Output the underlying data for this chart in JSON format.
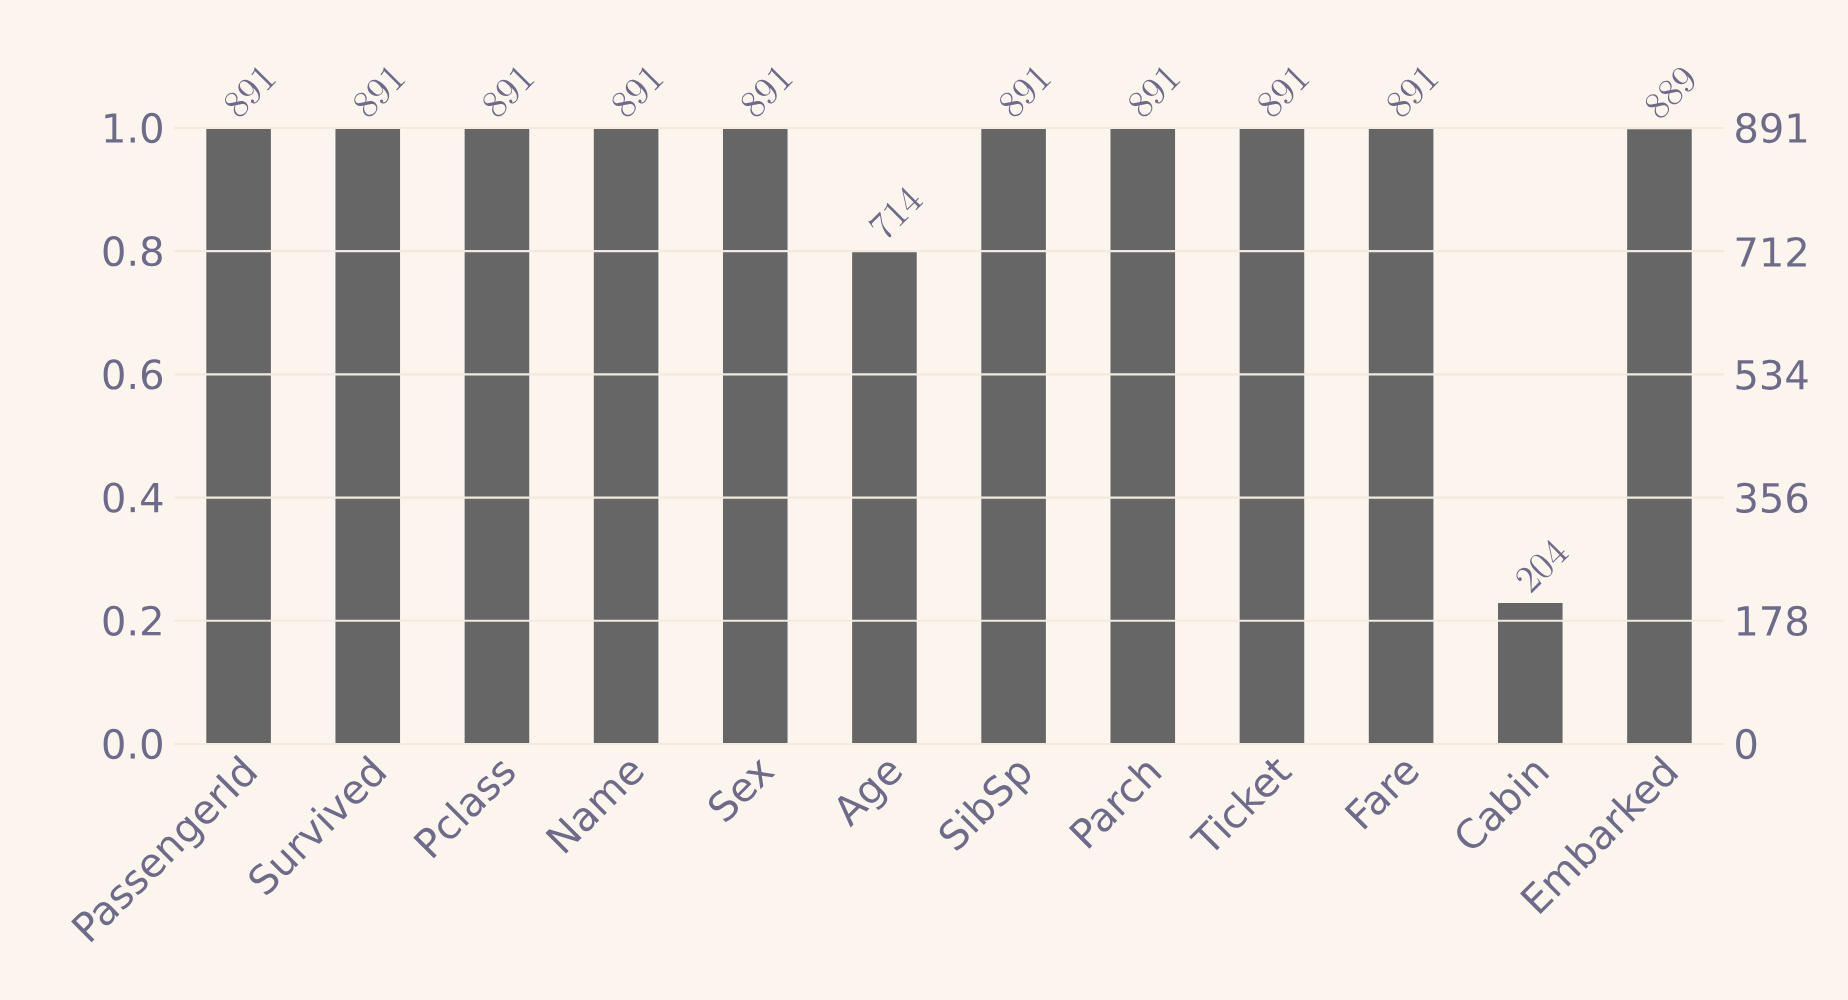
{
  "chart_data": {
    "type": "bar",
    "categories": [
      "PassengerId",
      "Survived",
      "Pclass",
      "Name",
      "Sex",
      "Age",
      "SibSp",
      "Parch",
      "Ticket",
      "Fare",
      "Cabin",
      "Embarked"
    ],
    "series": [
      {
        "color": "#666666",
        "axis": "y2",
        "values": [
          891,
          891,
          891,
          891,
          891,
          714,
          891,
          891,
          891,
          891,
          204,
          889
        ]
      }
    ],
    "ylim": [
      0,
      1
    ],
    "yticks": [
      {
        "value": 0,
        "label": "0.0"
      },
      {
        "value": 0.2,
        "label": "0.2"
      },
      {
        "value": 0.4,
        "label": "0.4"
      },
      {
        "value": 0.6,
        "label": "0.6"
      },
      {
        "value": 0.8,
        "label": "0.8"
      },
      {
        "value": 1,
        "label": "1.0"
      }
    ],
    "y2lim": [
      0,
      891
    ],
    "y2ticks": [
      0,
      178,
      356,
      534,
      712,
      891
    ],
    "grid": "y",
    "data_labels": true
  }
}
